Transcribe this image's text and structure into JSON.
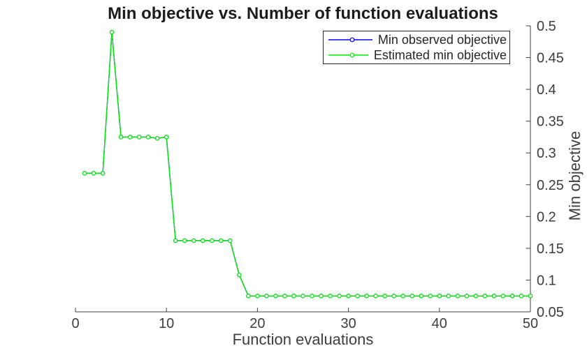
{
  "figure": {
    "title": "Min objective vs. Number of function evaluations",
    "xlabel": "Function evaluations",
    "ylabel": "Min objective"
  },
  "legend": {
    "position": "top-right",
    "items": [
      {
        "name": "min-observed-objective",
        "label": "Min observed objective",
        "color": "#0000ff",
        "marker": "circle"
      },
      {
        "name": "estimated-min-objective",
        "label": "Estimated min objective",
        "color": "#00ee00",
        "marker": "circle"
      }
    ]
  },
  "chart_data": {
    "type": "line",
    "title": "Min objective vs. Number of function evaluations",
    "xlabel": "Function evaluations",
    "ylabel": "Min objective",
    "xlim": [
      0,
      50
    ],
    "ylim": [
      0.05,
      0.5
    ],
    "x_ticks": [
      0,
      10,
      20,
      30,
      40,
      50
    ],
    "y_ticks": [
      0.05,
      0.1,
      0.15,
      0.2,
      0.25,
      0.3,
      0.35,
      0.4,
      0.45,
      0.5
    ],
    "grid": false,
    "axis_color": "#424242",
    "legend_position": "top-right",
    "x": [
      1,
      2,
      3,
      4,
      5,
      6,
      7,
      8,
      9,
      10,
      11,
      12,
      13,
      14,
      15,
      16,
      17,
      18,
      19,
      20,
      21,
      22,
      23,
      24,
      25,
      26,
      27,
      28,
      29,
      30,
      31,
      32,
      33,
      34,
      35,
      36,
      37,
      38,
      39,
      40,
      41,
      42,
      43,
      44,
      45,
      46,
      47,
      48,
      49,
      50
    ],
    "series": [
      {
        "name": "Min observed objective",
        "color": "#0000ff",
        "note_hidden_under_next_series": true,
        "values": [
          0.268,
          0.268,
          0.268,
          0.49,
          0.325,
          0.325,
          0.325,
          0.325,
          0.323,
          0.325,
          0.162,
          0.162,
          0.162,
          0.162,
          0.162,
          0.162,
          0.162,
          0.108,
          0.075,
          0.075,
          0.075,
          0.075,
          0.075,
          0.075,
          0.075,
          0.075,
          0.075,
          0.075,
          0.075,
          0.075,
          0.075,
          0.075,
          0.075,
          0.075,
          0.075,
          0.075,
          0.075,
          0.075,
          0.075,
          0.075,
          0.075,
          0.075,
          0.075,
          0.075,
          0.075,
          0.075,
          0.075,
          0.075,
          0.075,
          0.075
        ]
      },
      {
        "name": "Estimated min objective",
        "color": "#00ee00",
        "values": [
          0.268,
          0.268,
          0.268,
          0.49,
          0.325,
          0.325,
          0.325,
          0.325,
          0.323,
          0.325,
          0.162,
          0.162,
          0.162,
          0.162,
          0.162,
          0.162,
          0.162,
          0.108,
          0.075,
          0.075,
          0.075,
          0.075,
          0.075,
          0.075,
          0.075,
          0.075,
          0.075,
          0.075,
          0.075,
          0.075,
          0.075,
          0.075,
          0.075,
          0.075,
          0.075,
          0.075,
          0.075,
          0.075,
          0.075,
          0.075,
          0.075,
          0.075,
          0.075,
          0.075,
          0.075,
          0.075,
          0.075,
          0.075,
          0.075,
          0.075
        ]
      }
    ]
  }
}
